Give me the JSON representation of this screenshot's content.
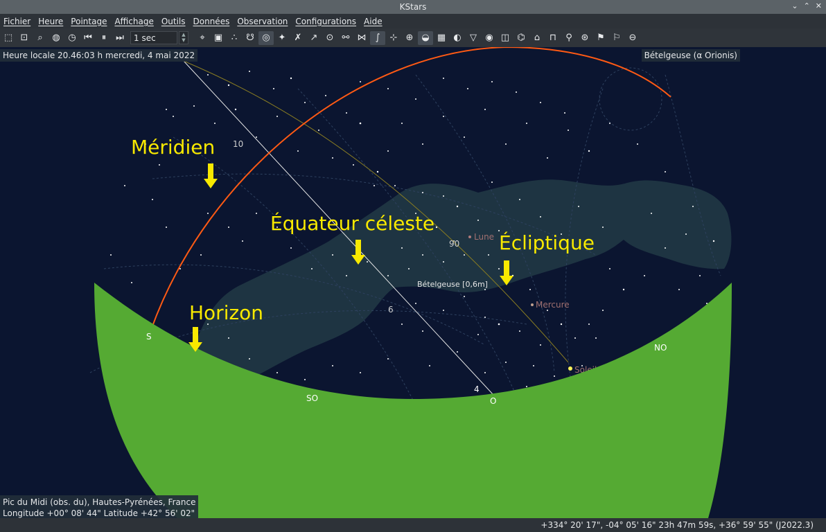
{
  "window": {
    "title": "KStars"
  },
  "menu": {
    "items": [
      "Fichier",
      "Heure",
      "Pointage",
      "Affichage",
      "Outils",
      "Données",
      "Observation",
      "Configurations",
      "Aide"
    ]
  },
  "toolbar": {
    "speed_value": "1 sec"
  },
  "info": {
    "time_label": "Heure locale 20.46:03 h   mercredi, 4 mai 2022",
    "focus_label": "Bételgeuse (α Orionis)",
    "location_line1": "Pic du Midi (obs. du), Hautes-Pyrénées, France",
    "location_line2": "Longitude +00° 08' 44\" Latitude +42° 56' 02\""
  },
  "annotations": {
    "meridian": "Méridien",
    "equator": "Équateur céleste",
    "ecliptic": "Écliptique",
    "horizon": "Horizon"
  },
  "sky_labels": {
    "moon": "Lune",
    "mercury": "Mercure",
    "sun": "Soleil",
    "betelgeuse": "Bételgeuse [0,6m]",
    "ra10": "10",
    "ra90": "90",
    "ra6": "6",
    "ra4": "4",
    "south": "S",
    "southwest": "SO",
    "west": "O",
    "northwest": "NO"
  },
  "status": {
    "coords": "+334° 20' 17\", -04° 05' 16\"  23h 47m 59s, +36° 59' 55\" (J2022.3)"
  },
  "colors": {
    "sky": "#0b1530",
    "ground": "#55aa33",
    "meridian": "#ff5a14",
    "annotation": "#f8e900",
    "milky_way": "#1e3442"
  }
}
